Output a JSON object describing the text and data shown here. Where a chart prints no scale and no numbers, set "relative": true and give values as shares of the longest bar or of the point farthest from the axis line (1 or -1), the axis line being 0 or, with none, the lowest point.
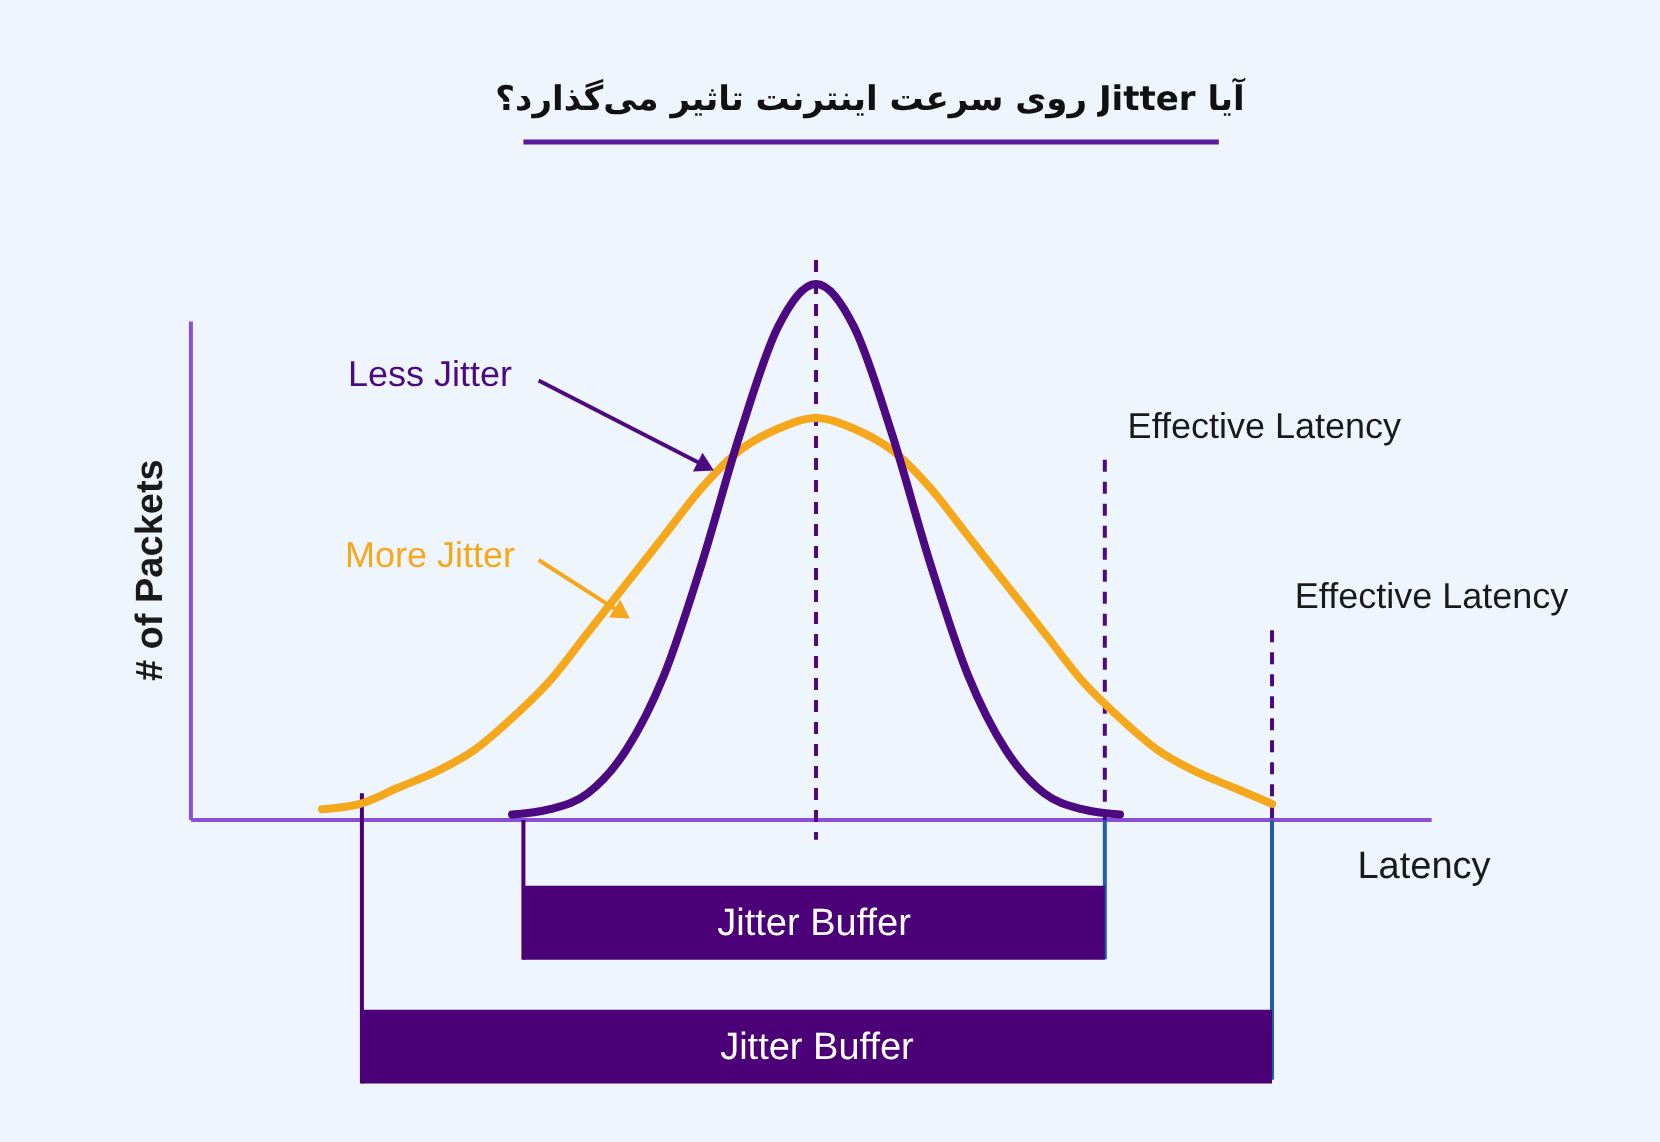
{
  "chart_data": {
    "type": "line",
    "title": "آیا Jitter روی سرعت اینترنت تاثیر می‌گذارد؟",
    "xlabel": "Latency",
    "ylabel": "# of Packets",
    "relative": true,
    "categories": [
      null,
      null,
      null,
      null,
      null,
      null,
      null,
      null,
      null,
      null,
      null,
      null,
      null,
      null,
      null,
      null,
      null,
      null,
      null,
      null,
      null,
      null,
      null,
      null,
      null,
      null
    ],
    "series": [
      {
        "name": "More Jitter",
        "color": "#f5a81c",
        "values": [
          0.02,
          0.03,
          0.06,
          0.09,
          0.13,
          0.19,
          0.26,
          0.35,
          0.44,
          0.53,
          0.62,
          0.69,
          0.73,
          0.75,
          0.73,
          0.69,
          0.62,
          0.53,
          0.44,
          0.35,
          0.26,
          0.19,
          0.13,
          0.09,
          0.06,
          0.03
        ]
      },
      {
        "name": "Less Jitter",
        "color": "#4b0a82",
        "values": [
          null,
          null,
          null,
          null,
          null,
          0.01,
          0.02,
          0.05,
          0.13,
          0.27,
          0.48,
          0.72,
          0.92,
          1,
          0.92,
          0.72,
          0.48,
          0.27,
          0.13,
          0.05,
          0.02,
          0.01,
          null,
          null,
          null,
          null
        ]
      }
    ],
    "annotations": [
      "Effective Latency",
      "Effective Latency",
      "Jitter Buffer",
      "Jitter Buffer"
    ]
  }
}
